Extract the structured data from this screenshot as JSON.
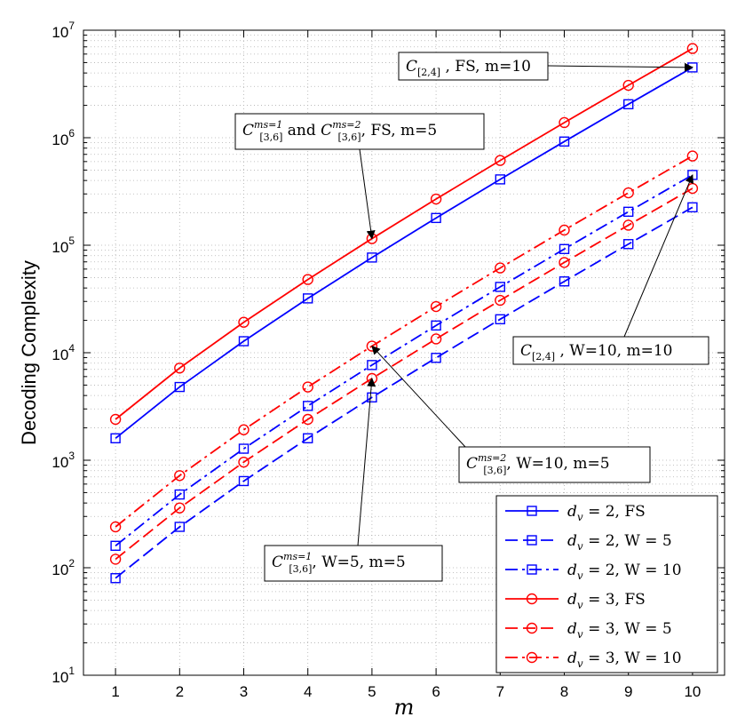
{
  "chart_data": {
    "type": "line",
    "yscale": "log",
    "title": "",
    "xlabel": "m",
    "ylabel": "Decoding Complexity",
    "xlim": [
      0.5,
      10.5
    ],
    "ylim_exp": [
      1,
      7
    ],
    "x": [
      1,
      2,
      3,
      4,
      5,
      6,
      7,
      8,
      9,
      10
    ],
    "xticks": [
      "1",
      "2",
      "3",
      "4",
      "5",
      "6",
      "7",
      "8",
      "9",
      "10"
    ],
    "yticks": [
      {
        "base": "10",
        "exp": "1",
        "exp_value": 1
      },
      {
        "base": "10",
        "exp": "2",
        "exp_value": 2
      },
      {
        "base": "10",
        "exp": "3",
        "exp_value": 3
      },
      {
        "base": "10",
        "exp": "4",
        "exp_value": 4
      },
      {
        "base": "10",
        "exp": "5",
        "exp_value": 5
      },
      {
        "base": "10",
        "exp": "6",
        "exp_value": 6
      },
      {
        "base": "10",
        "exp": "7",
        "exp_value": 7
      }
    ],
    "grid": true,
    "legend_position": "bottom-right",
    "series": [
      {
        "id": "dv2-fs",
        "var": "d",
        "sub": "v",
        "rest": " = 2, FS",
        "color": "#0000ff",
        "marker": "square",
        "dash": "solid",
        "values": [
          1600,
          4800,
          12800,
          32000,
          76800,
          179200,
          409600,
          921600,
          2048000,
          4505600
        ]
      },
      {
        "id": "dv2-w5",
        "var": "d",
        "sub": "v",
        "rest": " = 2, W = 5",
        "color": "#0000ff",
        "marker": "square",
        "dash": "dashed",
        "values": [
          80,
          240,
          640,
          1600,
          3840,
          8960,
          20480,
          46080,
          102400,
          225280
        ]
      },
      {
        "id": "dv2-w10",
        "var": "d",
        "sub": "v",
        "rest": " = 2, W = 10",
        "color": "#0000ff",
        "marker": "square",
        "dash": "dashdot",
        "values": [
          160,
          480,
          1280,
          3200,
          7680,
          17920,
          40960,
          92160,
          204800,
          450560
        ]
      },
      {
        "id": "dv3-fs",
        "var": "d",
        "sub": "v",
        "rest": " = 3, FS",
        "color": "#ff0000",
        "marker": "circle",
        "dash": "solid",
        "values": [
          2400,
          7200,
          19200,
          48000,
          115200,
          268800,
          614400,
          1382400,
          3072000,
          6758400
        ]
      },
      {
        "id": "dv3-w5",
        "var": "d",
        "sub": "v",
        "rest": " = 3, W = 5",
        "color": "#ff0000",
        "marker": "circle",
        "dash": "dashed",
        "values": [
          120,
          360,
          960,
          2400,
          5760,
          13440,
          30720,
          69120,
          153600,
          337920
        ]
      },
      {
        "id": "dv3-w10",
        "var": "d",
        "sub": "v",
        "rest": " = 3, W = 10",
        "color": "#ff0000",
        "marker": "circle",
        "dash": "dashdot",
        "values": [
          240,
          720,
          1920,
          4800,
          11520,
          26880,
          61440,
          138240,
          307200,
          675840
        ]
      }
    ],
    "annotations": [
      {
        "id": "ann-c24-fs",
        "parts": [
          {
            "t": "C",
            "k": "cal"
          },
          {
            "t": "[2,4]",
            "k": "sub"
          },
          {
            "t": " , FS, m=10",
            "k": "n"
          }
        ],
        "target": {
          "x": 10,
          "y": 4505600
        }
      },
      {
        "id": "ann-c36-fs",
        "parts": [
          {
            "t": "C",
            "k": "cal"
          },
          {
            "t": "ms=1",
            "k": "sup"
          },
          {
            "t": "[3,6]",
            "k": "sub"
          },
          {
            "t": " and ",
            "k": "n"
          },
          {
            "t": "C",
            "k": "cal"
          },
          {
            "t": "ms=2",
            "k": "sup"
          },
          {
            "t": "[3,6]",
            "k": "sub"
          },
          {
            "t": ", FS, m=5",
            "k": "n"
          }
        ],
        "target": {
          "x": 5,
          "y": 115200
        }
      },
      {
        "id": "ann-c24-w10",
        "parts": [
          {
            "t": "C",
            "k": "cal"
          },
          {
            "t": "[2,4]",
            "k": "sub"
          },
          {
            "t": " , W=10, m=10",
            "k": "n"
          }
        ],
        "target": {
          "x": 10,
          "y": 450560
        }
      },
      {
        "id": "ann-c36-ms2-w10",
        "parts": [
          {
            "t": "C",
            "k": "cal"
          },
          {
            "t": "ms=2",
            "k": "sup"
          },
          {
            "t": "[3,6]",
            "k": "sub"
          },
          {
            "t": ", W=10, m=5",
            "k": "n"
          }
        ],
        "target": {
          "x": 5,
          "y": 11520
        }
      },
      {
        "id": "ann-c36-ms1-w5",
        "parts": [
          {
            "t": "C",
            "k": "cal"
          },
          {
            "t": "ms=1",
            "k": "sup"
          },
          {
            "t": "[3,6]",
            "k": "sub"
          },
          {
            "t": ", W=5, m=5",
            "k": "n"
          }
        ],
        "target": {
          "x": 5,
          "y": 5760
        }
      }
    ]
  }
}
